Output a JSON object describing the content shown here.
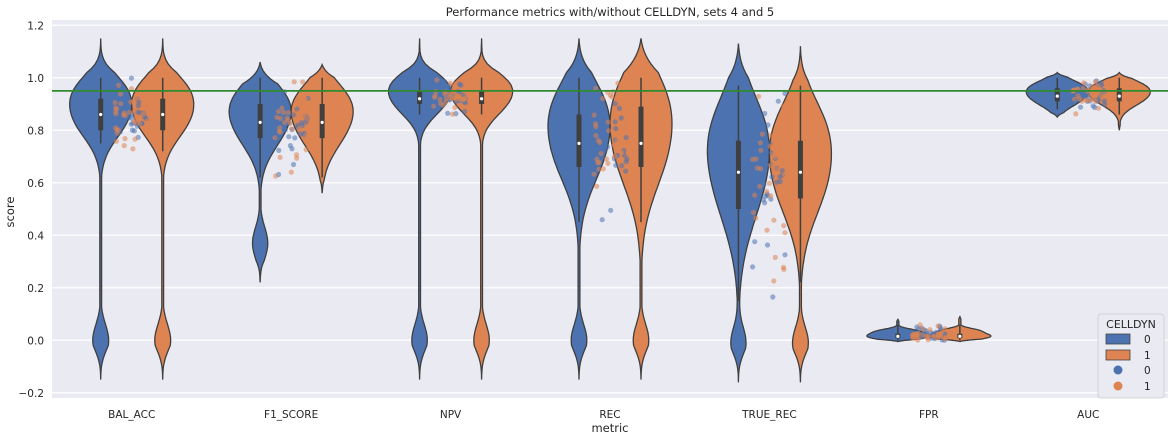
{
  "chart_data": {
    "type": "violin",
    "title": "Performance metrics with/without CELLDYN, sets 4 and 5",
    "xlabel": "metric",
    "ylabel": "score",
    "categories": [
      "BAL_ACC",
      "F1_SCORE",
      "NPV",
      "REC",
      "TRUE_REC",
      "FPR",
      "AUC"
    ],
    "ylim": [
      -0.22,
      1.22
    ],
    "yticks": [
      -0.2,
      0.0,
      0.2,
      0.4,
      0.6,
      0.8,
      1.0,
      1.2
    ],
    "ytick_labels": [
      "−0.2",
      "0.0",
      "0.2",
      "0.4",
      "0.6",
      "0.8",
      "1.0",
      "1.2"
    ],
    "reference_line": {
      "y": 0.95,
      "color": "#2e8b2e"
    },
    "grid": true,
    "legend": {
      "title": "CELLDYN",
      "placement": "lower-right",
      "violin_entries": [
        "0",
        "1"
      ],
      "point_entries": [
        "0",
        "1"
      ]
    },
    "colors": {
      "violin_0": "#4c72b0",
      "violin_1": "#dd8452",
      "point_0": "#4c72b0",
      "point_1": "#dd8452",
      "background": "#eaeaf2"
    },
    "series": [
      {
        "name": "0",
        "medians": [
          0.86,
          0.83,
          0.92,
          0.75,
          0.64,
          0.015,
          0.93
        ],
        "q1": [
          0.8,
          0.77,
          0.9,
          0.66,
          0.5,
          0.008,
          0.91
        ],
        "q3": [
          0.92,
          0.9,
          0.95,
          0.86,
          0.76,
          0.025,
          0.96
        ],
        "whisker_low": [
          0.75,
          0.62,
          0.86,
          0.45,
          0.15,
          0.0,
          0.88
        ],
        "whisker_high": [
          1.0,
          1.0,
          1.0,
          1.0,
          0.97,
          0.06,
          1.0
        ],
        "extent": [
          [
            -0.15,
            1.15
          ],
          [
            0.22,
            1.06
          ],
          [
            -0.15,
            1.15
          ],
          [
            -0.15,
            1.15
          ],
          [
            -0.16,
            1.13
          ],
          [
            -0.005,
            0.08
          ],
          [
            0.85,
            1.02
          ]
        ]
      },
      {
        "name": "1",
        "medians": [
          0.86,
          0.83,
          0.92,
          0.75,
          0.64,
          0.015,
          0.93
        ],
        "q1": [
          0.8,
          0.77,
          0.9,
          0.66,
          0.54,
          0.008,
          0.91
        ],
        "q3": [
          0.92,
          0.9,
          0.95,
          0.89,
          0.76,
          0.025,
          0.96
        ],
        "whisker_low": [
          0.72,
          0.62,
          0.86,
          0.45,
          0.22,
          0.0,
          0.86
        ],
        "whisker_high": [
          1.0,
          1.0,
          1.0,
          1.0,
          0.97,
          0.06,
          1.0
        ],
        "extent": [
          [
            -0.15,
            1.15
          ],
          [
            0.56,
            1.05
          ],
          [
            -0.15,
            1.15
          ],
          [
            -0.15,
            1.15
          ],
          [
            -0.16,
            1.12
          ],
          [
            -0.005,
            0.09
          ],
          [
            0.8,
            1.02
          ]
        ]
      }
    ]
  }
}
